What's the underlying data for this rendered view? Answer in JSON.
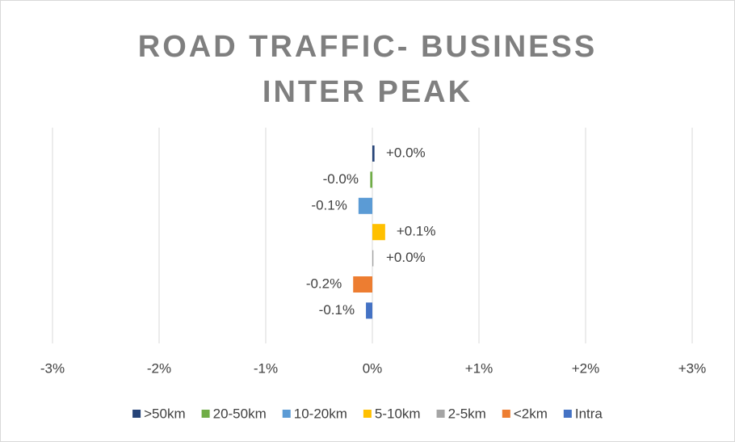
{
  "chart_data": {
    "type": "bar",
    "orientation": "horizontal",
    "title": "ROAD TRAFFIC- BUSINESS INTER PEAK",
    "categories": [
      null
    ],
    "series": [
      {
        "name": ">50km",
        "color": "#264478",
        "values": [
          0.02
        ],
        "value_labels": [
          "+0.0%"
        ]
      },
      {
        "name": "20-50km",
        "color": "#70ad47",
        "values": [
          -0.02
        ],
        "value_labels": [
          "-0.0%"
        ]
      },
      {
        "name": "10-20km",
        "color": "#5b9bd5",
        "values": [
          -0.13
        ],
        "value_labels": [
          "-0.1%"
        ]
      },
      {
        "name": "5-10km",
        "color": "#ffc000",
        "values": [
          0.12
        ],
        "value_labels": [
          "+0.1%"
        ]
      },
      {
        "name": "2-5km",
        "color": "#a5a5a5",
        "values": [
          0.01
        ],
        "value_labels": [
          "+0.0%"
        ]
      },
      {
        "name": "<2km",
        "color": "#ed7d31",
        "values": [
          -0.18
        ],
        "value_labels": [
          "-0.2%"
        ]
      },
      {
        "name": "Intra",
        "color": "#4472c4",
        "values": [
          -0.06
        ],
        "value_labels": [
          "-0.1%"
        ]
      }
    ],
    "xlim": [
      -3,
      3
    ],
    "xticks": [
      {
        "value": -3,
        "label": "-3%"
      },
      {
        "value": -2,
        "label": "-2%"
      },
      {
        "value": -1,
        "label": "-1%"
      },
      {
        "value": 0,
        "label": "0%"
      },
      {
        "value": 1,
        "label": "+1%"
      },
      {
        "value": 2,
        "label": "+2%"
      },
      {
        "value": 3,
        "label": "+3%"
      }
    ],
    "grid": true,
    "legend": "bottom"
  }
}
